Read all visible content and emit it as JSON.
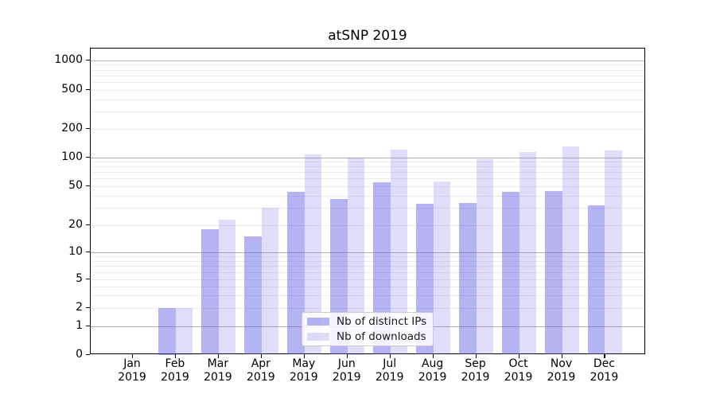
{
  "title": "atSNP 2019",
  "colors": {
    "bar_distinct_ips": "rgba(88,88,228,0.45)",
    "bar_downloads": "rgba(88,88,228,0.20)",
    "grid_major": "#b3b3b3",
    "grid_minor": "#ececec",
    "spine": "#000000"
  },
  "legend": {
    "items": [
      {
        "label": "Nb of distinct IPs",
        "series": "distinct_ips"
      },
      {
        "label": "Nb of downloads",
        "series": "downloads"
      }
    ]
  },
  "chart_data": {
    "type": "bar",
    "title": "atSNP 2019",
    "xlabel": "",
    "ylabel": "",
    "categories": [
      "Jan 2019",
      "Feb 2019",
      "Mar 2019",
      "Apr 2019",
      "May 2019",
      "Jun 2019",
      "Jul 2019",
      "Aug 2019",
      "Sep 2019",
      "Oct 2019",
      "Nov 2019",
      "Dec 2019"
    ],
    "series": [
      {
        "name": "Nb of distinct IPs",
        "values": [
          0,
          2,
          18,
          15,
          44,
          37,
          55,
          33,
          34,
          44,
          45,
          32
        ]
      },
      {
        "name": "Nb of downloads",
        "values": [
          0,
          2,
          23,
          30,
          107,
          100,
          121,
          56,
          95,
          114,
          129,
          118
        ]
      }
    ],
    "yscale": "symlog (log-like axis including 0)",
    "yticks": [
      0,
      1,
      2,
      5,
      10,
      20,
      50,
      100,
      200,
      500,
      1000
    ],
    "ylim": [
      0,
      1400
    ],
    "grid": "horizontal major and minor gridlines",
    "legend_position": "lower center"
  }
}
